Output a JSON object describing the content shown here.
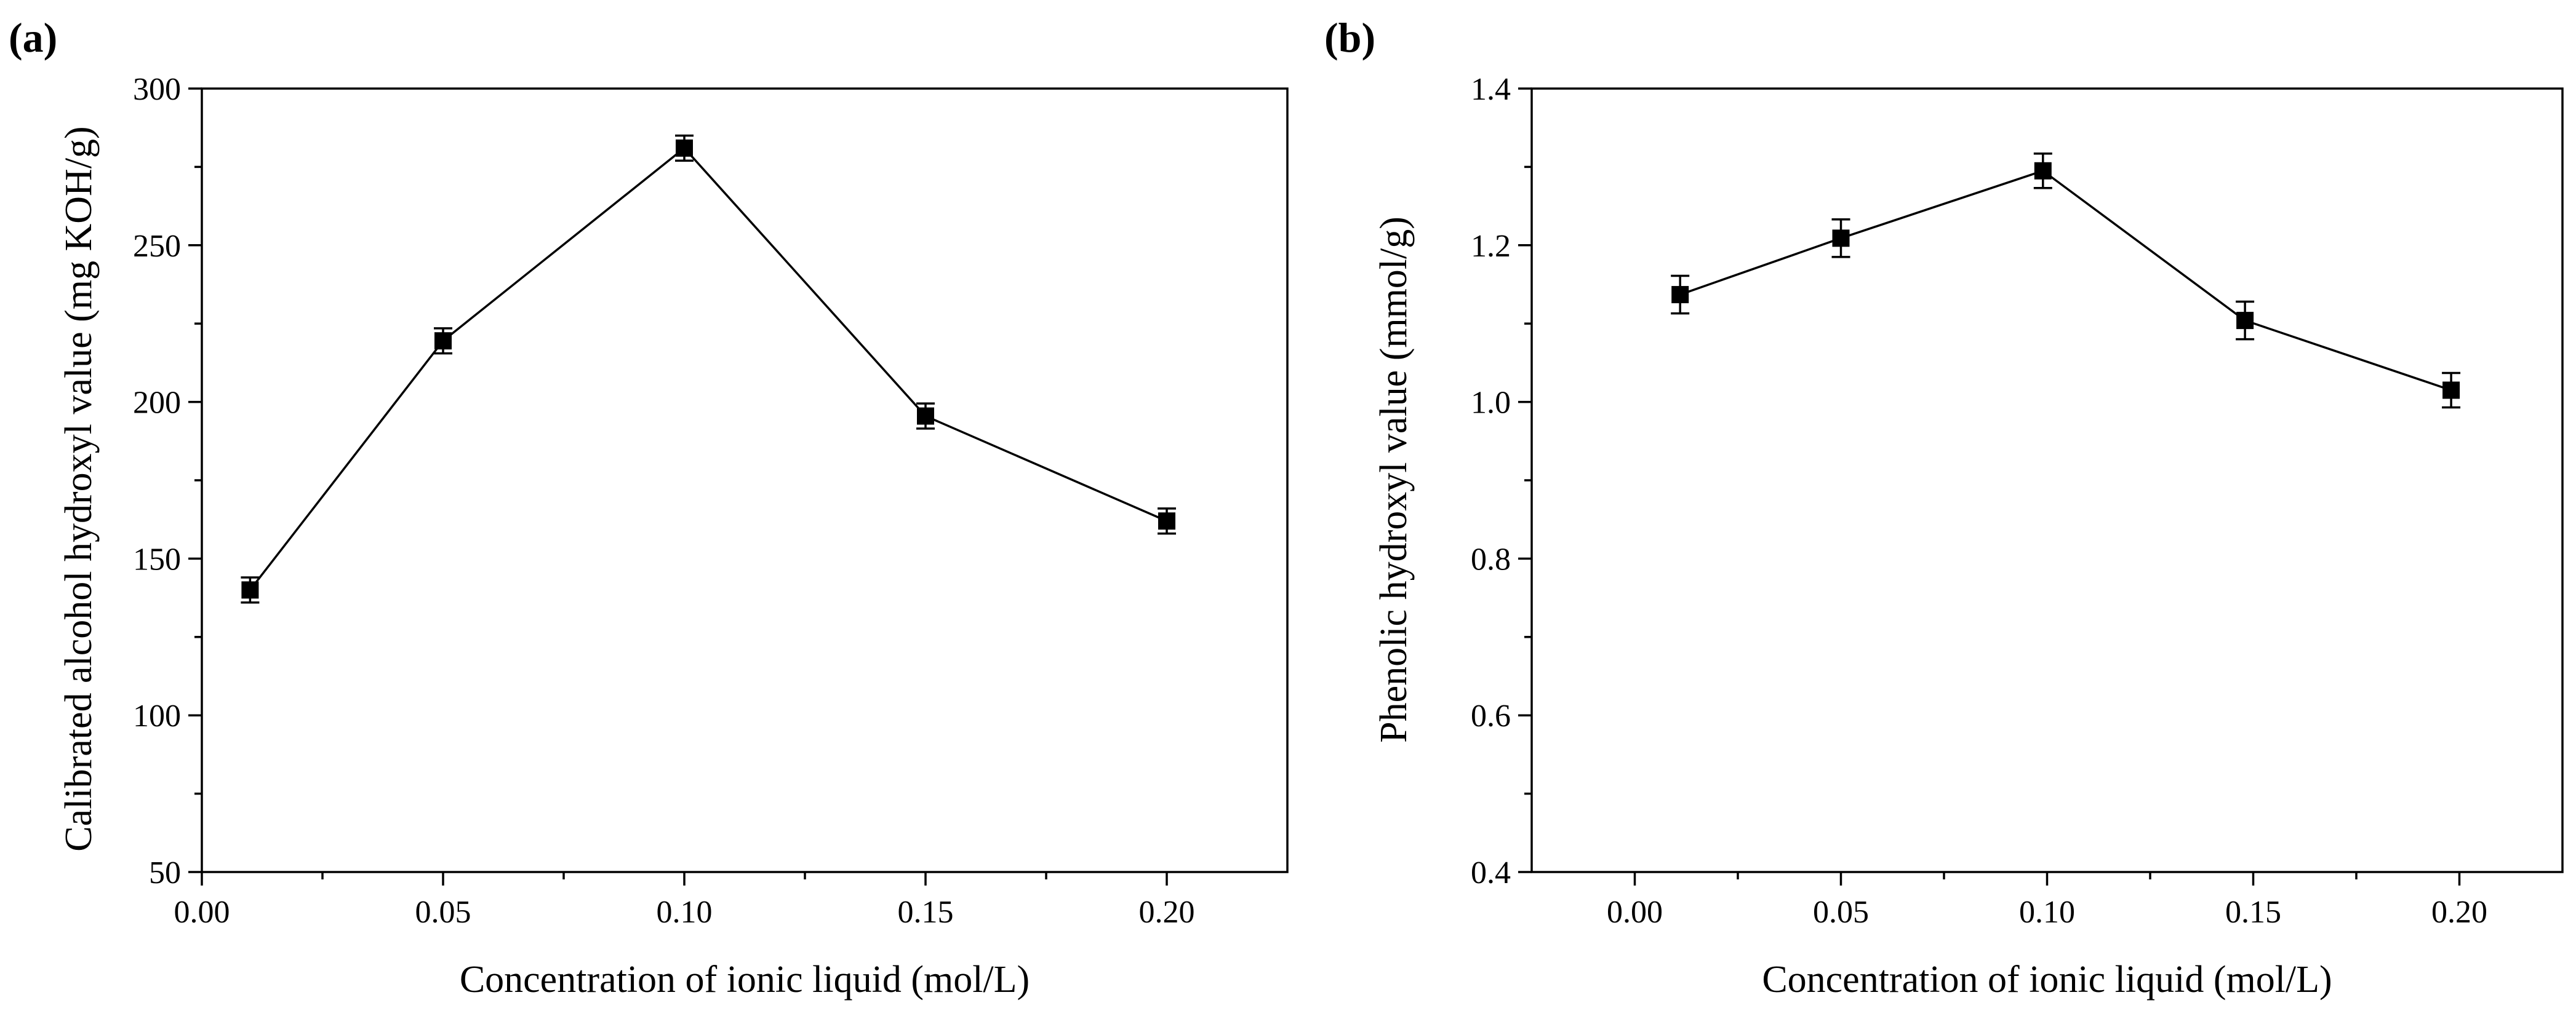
{
  "chart_data": [
    {
      "type": "line",
      "panel_label": "(a)",
      "xlabel": "Concentration of ionic liquid (mol/L)",
      "ylabel": "Calibrated alcohol hydroxyl value (mg KOH/g)",
      "xlim": [
        0.0,
        0.225
      ],
      "ylim": [
        50,
        300
      ],
      "xticks": [
        0.0,
        0.05,
        0.1,
        0.15,
        0.2
      ],
      "xtick_labels": [
        "0.00",
        "0.05",
        "0.10",
        "0.15",
        "0.20"
      ],
      "yticks": [
        50,
        100,
        150,
        200,
        250,
        300
      ],
      "ytick_labels": [
        "50",
        "100",
        "150",
        "200",
        "250",
        "300"
      ],
      "series": [
        {
          "name": "alcohol hydroxyl value",
          "x": [
            0.01,
            0.05,
            0.1,
            0.15,
            0.2
          ],
          "values": [
            140,
            219.5,
            281,
            195.5,
            162
          ],
          "errors": [
            4,
            4,
            4,
            4,
            4
          ]
        }
      ]
    },
    {
      "type": "line",
      "panel_label": "(b)",
      "xlabel": "Concentration of ionic liquid (mol/L)",
      "ylabel": "Phenolic hydroxyl value (mmol/g)",
      "xlim": [
        -0.025,
        0.225
      ],
      "ylim": [
        0.4,
        1.4
      ],
      "xticks": [
        0.0,
        0.05,
        0.1,
        0.15,
        0.2
      ],
      "xtick_labels": [
        "0.00",
        "0.05",
        "0.10",
        "0.15",
        "0.20"
      ],
      "yticks": [
        0.4,
        0.6,
        0.8,
        1.0,
        1.2,
        1.4
      ],
      "ytick_labels": [
        "0.4",
        "0.6",
        "0.8",
        "1.0",
        "1.2",
        "1.4"
      ],
      "series": [
        {
          "name": "phenolic hydroxyl value",
          "x": [
            0.011,
            0.05,
            0.099,
            0.148,
            0.198
          ],
          "values": [
            1.137,
            1.209,
            1.295,
            1.104,
            1.015
          ],
          "errors": [
            0.024,
            0.024,
            0.022,
            0.024,
            0.022
          ]
        }
      ]
    }
  ]
}
